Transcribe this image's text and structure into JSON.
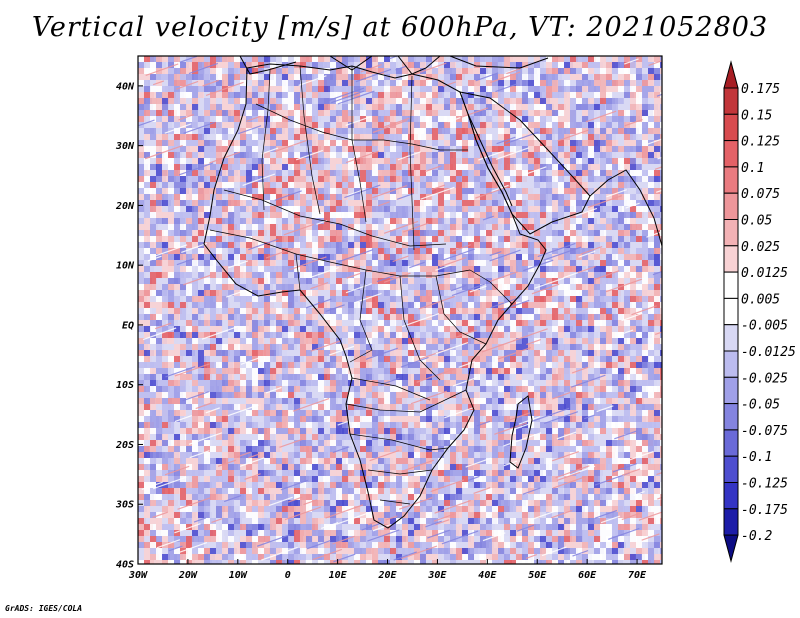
{
  "title": "Vertical velocity [m/s] at 600hPa, VT: 2021052803",
  "credit": "GrADS: IGES/COLA",
  "map": {
    "region": "Africa",
    "variable": "Vertical velocity",
    "units": "m/s",
    "level": "600hPa",
    "valid_time": "2021052803",
    "lon_range": [
      -30,
      75
    ],
    "lat_range": [
      -40,
      45
    ],
    "x_tick_labels": [
      "30W",
      "20W",
      "10W",
      "0",
      "10E",
      "20E",
      "30E",
      "40E",
      "50E",
      "60E",
      "70E"
    ],
    "y_tick_labels": [
      "40N",
      "30N",
      "20N",
      "10N",
      "EQ",
      "10S",
      "20S",
      "30S",
      "40S"
    ]
  },
  "colorbar": {
    "labels": [
      "0.175",
      "0.15",
      "0.125",
      "0.1",
      "0.075",
      "0.05",
      "0.025",
      "0.0125",
      "0.005",
      "-0.005",
      "-0.0125",
      "-0.025",
      "-0.05",
      "-0.075",
      "-0.1",
      "-0.125",
      "-0.175",
      "-0.2"
    ],
    "colors": [
      "#a71e24",
      "#c2363a",
      "#d84b4f",
      "#e46267",
      "#ea7b80",
      "#ee969a",
      "#f3b2b5",
      "#f8d2d4",
      "#ffffff",
      "#ffffff",
      "#d8d8f4",
      "#bcbcef",
      "#a0a0e8",
      "#8484e0",
      "#6a6ad8",
      "#4e4ed0",
      "#3434c4",
      "#1c1ca8",
      "#0c0c84"
    ]
  }
}
